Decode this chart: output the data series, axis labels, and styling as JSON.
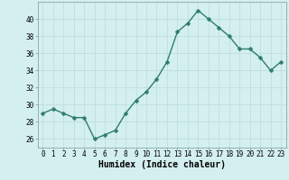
{
  "x": [
    0,
    1,
    2,
    3,
    4,
    5,
    6,
    7,
    8,
    9,
    10,
    11,
    12,
    13,
    14,
    15,
    16,
    17,
    18,
    19,
    20,
    21,
    22,
    23
  ],
  "y": [
    29,
    29.5,
    29,
    28.5,
    28.5,
    26,
    26.5,
    27,
    29,
    30.5,
    31.5,
    33,
    35,
    38.5,
    39.5,
    41,
    40,
    39,
    38,
    36.5,
    36.5,
    35.5,
    34,
    35
  ],
  "line_color": "#2e7d6e",
  "marker_color": "#2e7d6e",
  "bg_color": "#d4efef",
  "grid_major_color": "#c0dede",
  "grid_minor_color": "#c0dede",
  "xlabel": "Humidex (Indice chaleur)",
  "ylim": [
    25,
    42
  ],
  "yticks": [
    26,
    28,
    30,
    32,
    34,
    36,
    38,
    40
  ],
  "xticks": [
    0,
    1,
    2,
    3,
    4,
    5,
    6,
    7,
    8,
    9,
    10,
    11,
    12,
    13,
    14,
    15,
    16,
    17,
    18,
    19,
    20,
    21,
    22,
    23
  ],
  "tick_label_fontsize": 5.5,
  "xlabel_fontsize": 7,
  "line_width": 1.0,
  "marker_size": 2.5
}
